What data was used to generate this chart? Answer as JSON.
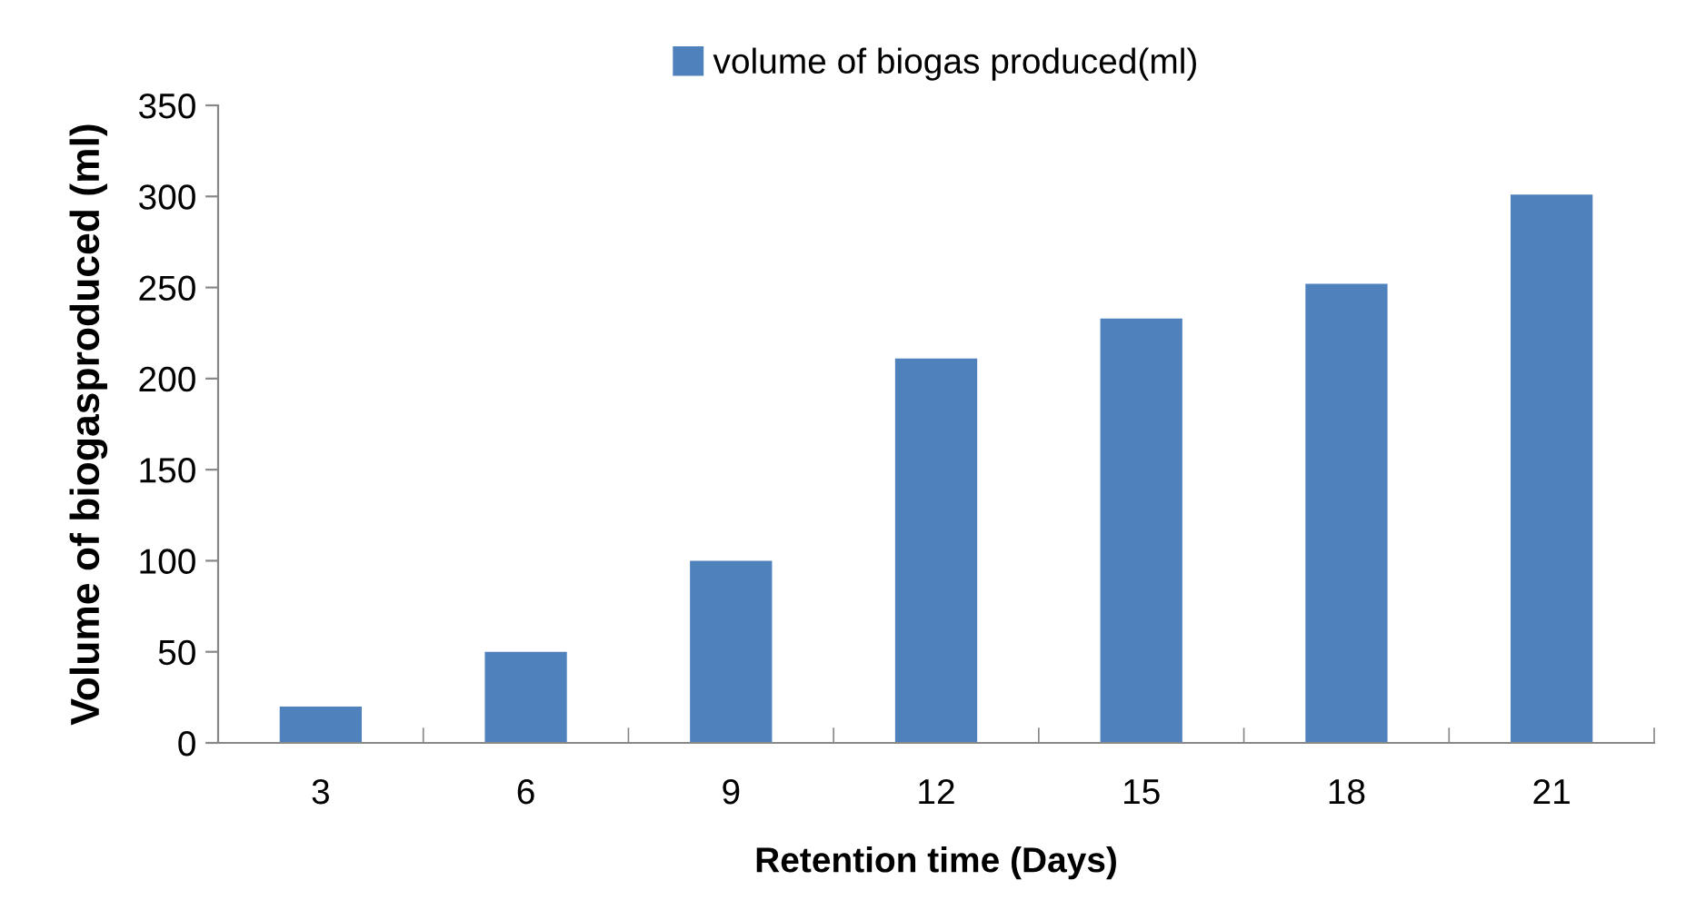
{
  "chart_data": {
    "type": "bar",
    "xlabel": "Retention time (Days)",
    "ylabel": "Volume of biogasproduced (ml)",
    "categories": [
      "3",
      "6",
      "9",
      "12",
      "15",
      "18",
      "21"
    ],
    "series": [
      {
        "name": "volume of biogas produced(ml)",
        "color": "#4f81bd",
        "values": [
          20,
          50,
          100,
          211,
          233,
          252,
          301
        ]
      }
    ],
    "ylim": [
      0,
      350
    ],
    "yticks": [
      0,
      50,
      100,
      150,
      200,
      250,
      300,
      350
    ],
    "grid": false,
    "legend": "top"
  }
}
